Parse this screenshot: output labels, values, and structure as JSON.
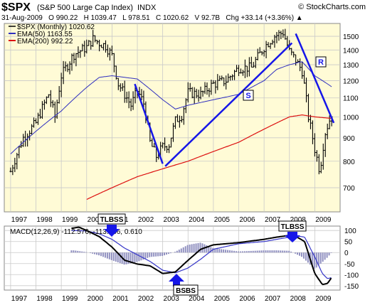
{
  "header": {
    "symbol": "$SPX",
    "name": "(S&P 500 Large Cap Index)",
    "exchange": "INDX",
    "watermark": "© StockCharts.com",
    "quote_line": "31-Aug-2009   O 990.22   H 1039.47   L 978.51   C 1020.62   V 92.7B   Chg +33.14 (+3.36%) ▲"
  },
  "colors": {
    "panel_bg": "#fffbd6",
    "grid": "#c9c9c9",
    "ema50": "#2f2fbf",
    "ema200": "#dd1111",
    "trendline": "#1616e8",
    "macd_line": "#000000",
    "signal_line": "#3636c8",
    "histogram": "#9090c0"
  },
  "legend": [
    {
      "label": "$SPX (Monthly) 1020.62",
      "color": "#000000"
    },
    {
      "label": "EMA(50) 1163.55",
      "color": "#2f2fbf"
    },
    {
      "label": "EMA(200) 992.22",
      "color": "#dd1111"
    }
  ],
  "macd_label": "MACD(12,26,9) -112.576, -113.186, 0.610",
  "annotations": [
    {
      "label": "S",
      "role": "trendline-support"
    },
    {
      "label": "R",
      "role": "trendline-resistance"
    },
    {
      "label": "TLBSS",
      "role": "macd-sell-1999"
    },
    {
      "label": "TLBSS",
      "role": "macd-sell-2007"
    },
    {
      "label": "BSBS",
      "role": "macd-buy-2003"
    }
  ],
  "chart_data": [
    {
      "type": "line",
      "title": "$SPX (S&P 500 Large Cap Index) INDX - Monthly",
      "x_ticks": [
        "1997",
        "1998",
        "1999",
        "2000",
        "2001",
        "2002",
        "2003",
        "2004",
        "2005",
        "2006",
        "2007",
        "2008",
        "2009"
      ],
      "y_ticks": [
        700,
        800,
        900,
        1000,
        1100,
        1200,
        1300,
        1400,
        1500
      ],
      "ylim": [
        620,
        1600
      ],
      "y_scale": "log",
      "grid": true,
      "legend_position": "top-left",
      "series": [
        {
          "name": "$SPX (Monthly)",
          "style": "ohlc-bars",
          "x": [
            1997.0,
            1997.5,
            1998.0,
            1998.5,
            1998.75,
            1999.0,
            1999.5,
            2000.0,
            2000.25,
            2000.5,
            2000.75,
            2001.0,
            2001.25,
            2001.75,
            2002.0,
            2002.25,
            2002.5,
            2002.75,
            2003.0,
            2003.25,
            2003.5,
            2003.75,
            2004.0,
            2004.5,
            2005.0,
            2005.5,
            2006.0,
            2006.5,
            2007.0,
            2007.4,
            2007.75,
            2008.0,
            2008.25,
            2008.5,
            2008.75,
            2009.0,
            2009.2,
            2009.4,
            2009.6,
            2009.67
          ],
          "values": [
            760,
            900,
            970,
            1120,
            1000,
            1230,
            1370,
            1420,
            1480,
            1450,
            1430,
            1360,
            1180,
            1060,
            1140,
            1070,
            880,
            820,
            860,
            870,
            980,
            1010,
            1130,
            1120,
            1180,
            1200,
            1280,
            1280,
            1420,
            1500,
            1530,
            1390,
            1330,
            1260,
            1000,
            850,
            760,
            920,
            990,
            1020
          ]
        },
        {
          "name": "EMA(50)",
          "x": [
            1997.0,
            1998.0,
            1999.0,
            2000.0,
            2000.5,
            2001.0,
            2002.0,
            2002.5,
            2003.0,
            2003.5,
            2004.0,
            2005.0,
            2006.0,
            2007.0,
            2007.5,
            2008.0,
            2008.5,
            2009.0,
            2009.67
          ],
          "values": [
            830,
            930,
            1030,
            1160,
            1220,
            1230,
            1210,
            1150,
            1090,
            1040,
            1060,
            1090,
            1120,
            1200,
            1270,
            1300,
            1320,
            1230,
            1163.55
          ]
        },
        {
          "name": "EMA(200)",
          "x": [
            2000.0,
            2001.0,
            2002.0,
            2003.0,
            2004.0,
            2005.0,
            2006.0,
            2007.0,
            2008.0,
            2008.5,
            2009.0,
            2009.67
          ],
          "values": [
            660,
            700,
            740,
            770,
            800,
            840,
            880,
            940,
            1000,
            1010,
            1000,
            992.22
          ]
        },
        {
          "name": "Trendline S",
          "x": [
            2003.1,
            2008.1
          ],
          "values": [
            780,
            1450
          ]
        },
        {
          "name": "Trendline R",
          "x": [
            2008.25,
            2009.75
          ],
          "values": [
            1520,
            970
          ]
        },
        {
          "name": "Trendline 2002",
          "x": [
            2001.9,
            2003.0
          ],
          "values": [
            1180,
            790
          ]
        }
      ]
    },
    {
      "type": "line",
      "title": "MACD(12,26,9)",
      "x_ticks": [
        "1997",
        "1998",
        "1999",
        "2000",
        "2001",
        "2002",
        "2003",
        "2004",
        "2005",
        "2006",
        "2007",
        "2008",
        "2009"
      ],
      "y_ticks": [
        100,
        50,
        0,
        -50,
        -100,
        -150
      ],
      "ylim": [
        -170,
        120
      ],
      "grid": true,
      "series": [
        {
          "name": "MACD",
          "x": [
            1999.4,
            1999.7,
            2000.0,
            2000.5,
            2001.0,
            2001.5,
            2002.0,
            2002.5,
            2003.0,
            2003.5,
            2004.0,
            2004.5,
            2005.0,
            2006.0,
            2007.0,
            2007.5,
            2008.0,
            2008.3,
            2008.6,
            2009.0,
            2009.3,
            2009.5,
            2009.67
          ],
          "values": [
            110,
            115,
            100,
            72,
            25,
            -35,
            -52,
            -60,
            -95,
            -88,
            -35,
            15,
            35,
            45,
            60,
            70,
            78,
            70,
            50,
            -95,
            -145,
            -140,
            -112.576
          ]
        },
        {
          "name": "Signal",
          "x": [
            1999.4,
            2000.0,
            2000.5,
            2001.0,
            2001.5,
            2002.0,
            2002.5,
            2003.0,
            2003.5,
            2004.0,
            2004.5,
            2005.0,
            2006.0,
            2007.0,
            2007.5,
            2008.0,
            2008.3,
            2008.6,
            2009.0,
            2009.3,
            2009.5,
            2009.67
          ],
          "values": [
            100,
            98,
            85,
            60,
            20,
            -10,
            -40,
            -80,
            -92,
            -70,
            -30,
            15,
            40,
            50,
            60,
            70,
            75,
            70,
            -20,
            -95,
            -118,
            -113.186
          ]
        },
        {
          "name": "Histogram",
          "style": "bars",
          "x": [
            1999.5,
            2000.0,
            2000.5,
            2001.0,
            2001.5,
            2002.0,
            2002.5,
            2003.0,
            2003.5,
            2004.0,
            2004.5,
            2005.0,
            2006.0,
            2007.0,
            2007.5,
            2008.0,
            2008.5,
            2009.0,
            2009.5,
            2009.67
          ],
          "values": [
            10,
            2,
            -13,
            -35,
            -55,
            -42,
            -20,
            -15,
            4,
            35,
            45,
            20,
            5,
            10,
            10,
            8,
            -20,
            -75,
            -22,
            0.61
          ]
        }
      ]
    }
  ]
}
